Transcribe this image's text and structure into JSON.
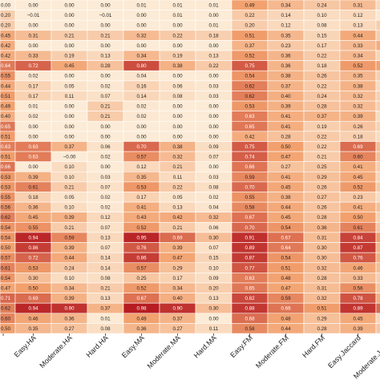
{
  "chart_data": {
    "type": "heatmap",
    "title": "",
    "xlabel": "",
    "ylabel": "",
    "x_labels": [
      "Easy.HA",
      "Moderate.HA",
      "Hard.HA",
      "Easy.MA",
      "Moderate.MA",
      "Hard.MA",
      "Easy.FM",
      "Moderate.FM",
      "Hard.FM",
      "Easy.Jaccard",
      "Moderate.Jaccard"
    ],
    "row_labels": [
      "0.00",
      "0.20",
      "0.20",
      "0.45",
      "0.42",
      "0.42",
      "0.64",
      "0.55",
      "0.44",
      "0.51",
      "0.49",
      "0.40",
      "0.65",
      "0.51",
      "0.63",
      "0.51",
      "0.66",
      "0.53",
      "0.53",
      "0.55",
      "0.56",
      "0.62",
      "0.54",
      "0.54",
      "0.50",
      "0.57",
      "0.61",
      "0.54",
      "0.47",
      "0.71",
      "0.62",
      "0.60",
      "0.50"
    ],
    "cell_labels": [
      [
        "0.00",
        "0.00",
        "0.00",
        "0.01",
        "0.01",
        "0.01",
        "0.49",
        "0.34",
        "0.24",
        "0.31",
        "0.13"
      ],
      [
        "−0.01",
        "0.00",
        "−0.01",
        "0.00",
        "0.01",
        "0.00",
        "0.22",
        "0.14",
        "0.10",
        "0.12",
        "0.02"
      ],
      [
        "0.00",
        "0.00",
        "0.00",
        "0.00",
        "0.00",
        "0.01",
        "0.20",
        "0.12",
        "0.08",
        "0.13",
        "0.20"
      ],
      [
        "0.31",
        "0.21",
        "0.21",
        "0.32",
        "0.22",
        "0.18",
        "0.51",
        "0.35",
        "0.15",
        "0.44",
        "0.20"
      ],
      [
        "0.00",
        "0.00",
        "0.00",
        "0.00",
        "0.00",
        "0.00",
        "0.37",
        "0.23",
        "0.17",
        "0.33",
        "0.42"
      ],
      [
        "0.33",
        "0.19",
        "0.13",
        "0.34",
        "0.19",
        "0.13",
        "0.52",
        "0.36",
        "0.22",
        "0.34",
        "0.16"
      ],
      [
        "0.72",
        "0.45",
        "0.28",
        "0.80",
        "0.38",
        "0.22",
        "0.75",
        "0.36",
        "0.18",
        "0.52",
        "0.49"
      ],
      [
        "0.02",
        "0.00",
        "0.00",
        "0.04",
        "0.00",
        "0.00",
        "0.54",
        "0.38",
        "0.26",
        "0.35",
        "0.19"
      ],
      [
        "0.17",
        "0.05",
        "0.02",
        "0.16",
        "0.06",
        "0.03",
        "0.62",
        "0.37",
        "0.22",
        "0.38",
        "0.12"
      ],
      [
        "0.17",
        "0.11",
        "0.07",
        "0.14",
        "0.08",
        "0.03",
        "0.62",
        "0.40",
        "0.24",
        "0.32",
        "0.18"
      ],
      [
        "0.01",
        "0.00",
        "0.21",
        "0.02",
        "0.00",
        "0.00",
        "0.53",
        "0.39",
        "0.28",
        "0.32",
        "0.19"
      ],
      [
        "0.02",
        "0.00",
        "0.21",
        "0.02",
        "0.00",
        "0.00",
        "0.63",
        "0.41",
        "0.37",
        "0.39",
        "0.11"
      ],
      [
        "0.00",
        "0.00",
        "0.00",
        "0.00",
        "0.00",
        "0.00",
        "0.65",
        "0.41",
        "0.19",
        "0.26",
        "0.17"
      ],
      [
        "0.00",
        "0.00",
        "0.00",
        "0.00",
        "0.00",
        "0.00",
        "0.42",
        "0.28",
        "0.22",
        "0.18",
        "0.11"
      ],
      [
        "0.63",
        "0.37",
        "0.06",
        "0.70",
        "0.38",
        "0.09",
        "0.75",
        "0.50",
        "0.22",
        "0.69",
        "0.32"
      ],
      [
        "0.63",
        "−0.00",
        "0.02",
        "0.57",
        "0.32",
        "0.07",
        "0.74",
        "0.47",
        "0.21",
        "0.60",
        "0.31"
      ],
      [
        "0.00",
        "0.10",
        "0.00",
        "0.12",
        "0.21",
        "0.00",
        "0.66",
        "0.27",
        "0.25",
        "0.41",
        "0.20"
      ],
      [
        "0.39",
        "0.10",
        "0.03",
        "0.35",
        "0.11",
        "0.03",
        "0.59",
        "0.41",
        "0.29",
        "0.45",
        "0.16"
      ],
      [
        "0.61",
        "0.21",
        "0.07",
        "0.53",
        "0.22",
        "0.08",
        "0.70",
        "0.45",
        "0.26",
        "0.52",
        "0.23"
      ],
      [
        "0.18",
        "0.05",
        "0.02",
        "0.17",
        "0.05",
        "0.02",
        "0.55",
        "0.38",
        "0.27",
        "0.23",
        "0.11"
      ],
      [
        "0.36",
        "0.10",
        "0.02",
        "0.41",
        "0.13",
        "0.04",
        "0.58",
        "0.44",
        "0.26",
        "0.41",
        "0.29"
      ],
      [
        "0.45",
        "0.39",
        "0.12",
        "0.43",
        "0.42",
        "0.32",
        "0.67",
        "0.45",
        "0.28",
        "0.50",
        "0.18"
      ],
      [
        "0.55",
        "0.21",
        "0.07",
        "0.52",
        "0.21",
        "0.06",
        "0.70",
        "0.54",
        "0.36",
        "0.61",
        "0.26"
      ],
      [
        "0.94",
        "0.59",
        "0.13",
        "0.95",
        "0.69",
        "0.30",
        "0.91",
        "0.67",
        "0.31",
        "0.84",
        "0.51"
      ],
      [
        "0.86",
        "0.39",
        "0.07",
        "0.76",
        "0.39",
        "0.07",
        "0.89",
        "0.64",
        "0.30",
        "0.87",
        "0.38"
      ],
      [
        "0.72",
        "0.44",
        "0.14",
        "0.86",
        "0.47",
        "0.15",
        "0.87",
        "0.54",
        "0.30",
        "0.76",
        "0.41"
      ],
      [
        "0.53",
        "0.24",
        "0.14",
        "0.57",
        "0.29",
        "0.10",
        "0.77",
        "0.51",
        "0.32",
        "0.46",
        "0.31"
      ],
      [
        "0.30",
        "0.10",
        "0.08",
        "0.25",
        "0.17",
        "0.09",
        "0.63",
        "0.48",
        "0.28",
        "0.33",
        "0.20"
      ],
      [
        "0.50",
        "0.34",
        "0.21",
        "0.52",
        "0.34",
        "0.20",
        "0.65",
        "0.47",
        "0.31",
        "0.56",
        "0.27"
      ],
      [
        "0.69",
        "0.39",
        "0.13",
        "0.67",
        "0.40",
        "0.13",
        "0.82",
        "0.59",
        "0.32",
        "0.78",
        "0.42"
      ],
      [
        "0.94",
        "0.90",
        "0.37",
        "0.98",
        "0.90",
        "0.30",
        "0.88",
        "0.66",
        "0.51",
        "0.89",
        "0.70"
      ],
      [
        "0.46",
        "0.36",
        "0.01",
        "0.49",
        "0.37",
        "0.00",
        "0.68",
        "0.48",
        "0.29",
        "0.45",
        "0.14"
      ],
      [
        "0.35",
        "0.27",
        "0.08",
        "0.36",
        "0.27",
        "0.11",
        "0.58",
        "0.44",
        "0.28",
        "0.39",
        "0.25"
      ]
    ],
    "color_scale": {
      "low": "#fcebd6",
      "mid": "#f2a06d",
      "high": "#b3161f",
      "domain": [
        0,
        1
      ]
    },
    "text_colors": {
      "light_bg": "#222222",
      "dark_bg": "#ffffff"
    }
  }
}
